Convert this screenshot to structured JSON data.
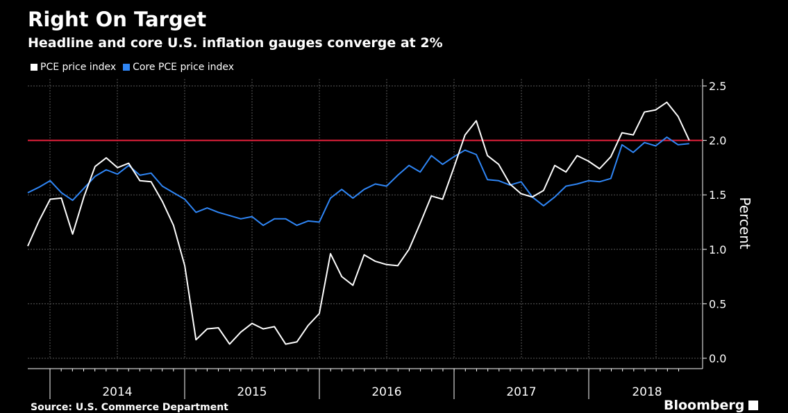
{
  "chart_data": {
    "type": "line",
    "title": "Right On Target",
    "subtitle": "Headline and core U.S. inflation gauges converge at 2%",
    "ylabel": "Percent",
    "ylim": [
      0,
      2.6
    ],
    "yticks": [
      "0.0",
      "0.5",
      "1.0",
      "1.5",
      "2.0",
      "2.5"
    ],
    "ytick_values": [
      0,
      0.5,
      1.0,
      1.5,
      2.0,
      2.5
    ],
    "xlabels": [
      "2014",
      "2015",
      "2016",
      "2017",
      "2018"
    ],
    "start": "2013-07",
    "target": 2.0,
    "series": [
      {
        "name": "PCE price index",
        "color": "#ffffff",
        "values": [
          1.03,
          1.26,
          1.46,
          1.47,
          1.14,
          1.48,
          1.76,
          1.84,
          1.75,
          1.79,
          1.63,
          1.62,
          1.44,
          1.22,
          0.85,
          0.17,
          0.27,
          0.28,
          0.13,
          0.24,
          0.32,
          0.27,
          0.29,
          0.13,
          0.15,
          0.3,
          0.41,
          0.96,
          0.75,
          0.67,
          0.95,
          0.89,
          0.86,
          0.85,
          1.0,
          1.24,
          1.49,
          1.46,
          1.75,
          2.05,
          2.18,
          1.86,
          1.78,
          1.6,
          1.51,
          1.48,
          1.54,
          1.77,
          1.71,
          1.86,
          1.81,
          1.74,
          1.85,
          2.07,
          2.05,
          2.26,
          2.28,
          2.35,
          2.22,
          2.0
        ]
      },
      {
        "name": "Core PCE price index",
        "color": "#2f86f6",
        "values": [
          1.52,
          1.57,
          1.63,
          1.52,
          1.45,
          1.56,
          1.67,
          1.73,
          1.69,
          1.77,
          1.68,
          1.7,
          1.58,
          1.52,
          1.46,
          1.34,
          1.38,
          1.34,
          1.31,
          1.28,
          1.3,
          1.22,
          1.28,
          1.28,
          1.22,
          1.26,
          1.25,
          1.47,
          1.55,
          1.47,
          1.55,
          1.6,
          1.58,
          1.68,
          1.77,
          1.71,
          1.86,
          1.78,
          1.85,
          1.91,
          1.87,
          1.64,
          1.63,
          1.59,
          1.62,
          1.48,
          1.4,
          1.48,
          1.58,
          1.6,
          1.63,
          1.62,
          1.65,
          1.96,
          1.89,
          1.98,
          1.95,
          2.03,
          1.96,
          1.97
        ]
      }
    ]
  },
  "source": "Source: U.S. Commerce Department",
  "brand": "Bloomberg",
  "target_color": "#e8213c"
}
